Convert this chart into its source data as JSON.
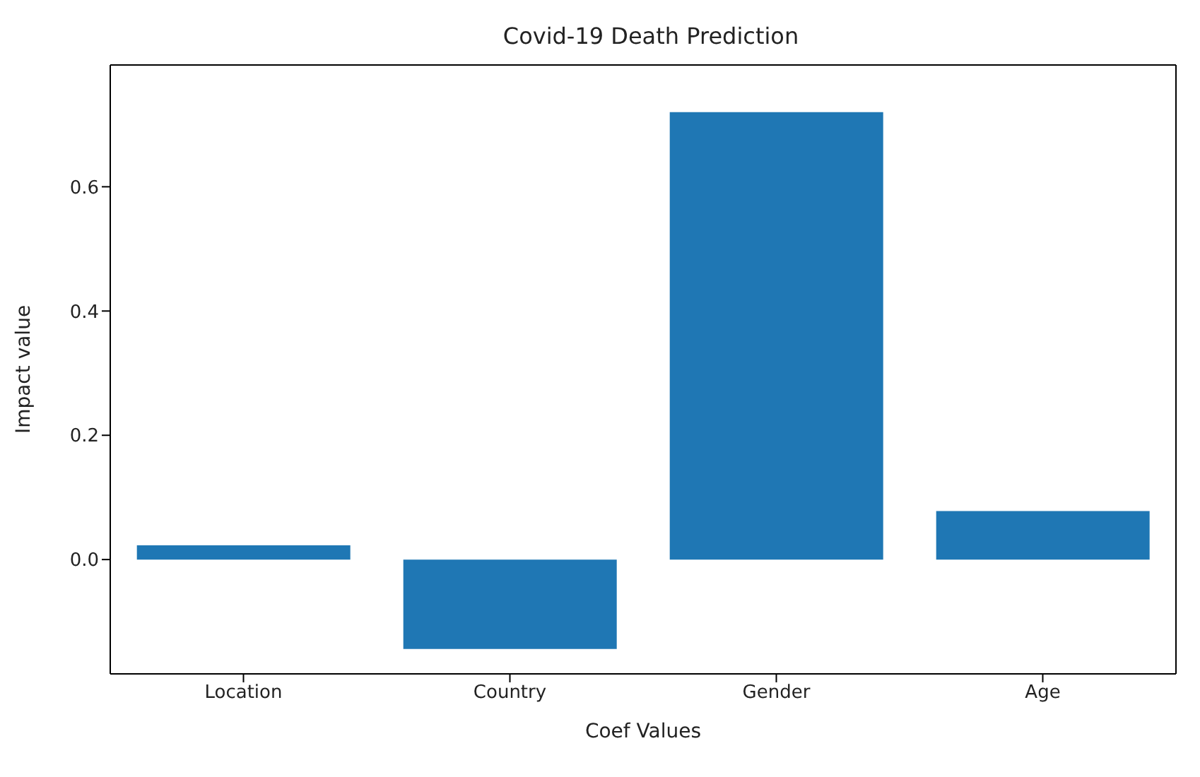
{
  "chart_data": {
    "type": "bar",
    "title": "Covid-19 Death Prediction",
    "xlabel": "Coef Values",
    "ylabel": "Impact value",
    "categories": [
      "Location",
      "Country",
      "Gender",
      "Age"
    ],
    "values": [
      0.023,
      -0.144,
      0.72,
      0.078
    ],
    "color": "#1f77b4",
    "ylim": [
      -0.184,
      0.796
    ],
    "yticks": [
      {
        "value": 0,
        "label": "0.0"
      },
      {
        "value": 0.2,
        "label": "0.2"
      },
      {
        "value": 0.4,
        "label": "0.4"
      },
      {
        "value": 0.6,
        "label": "0.6"
      }
    ],
    "grid": false
  }
}
